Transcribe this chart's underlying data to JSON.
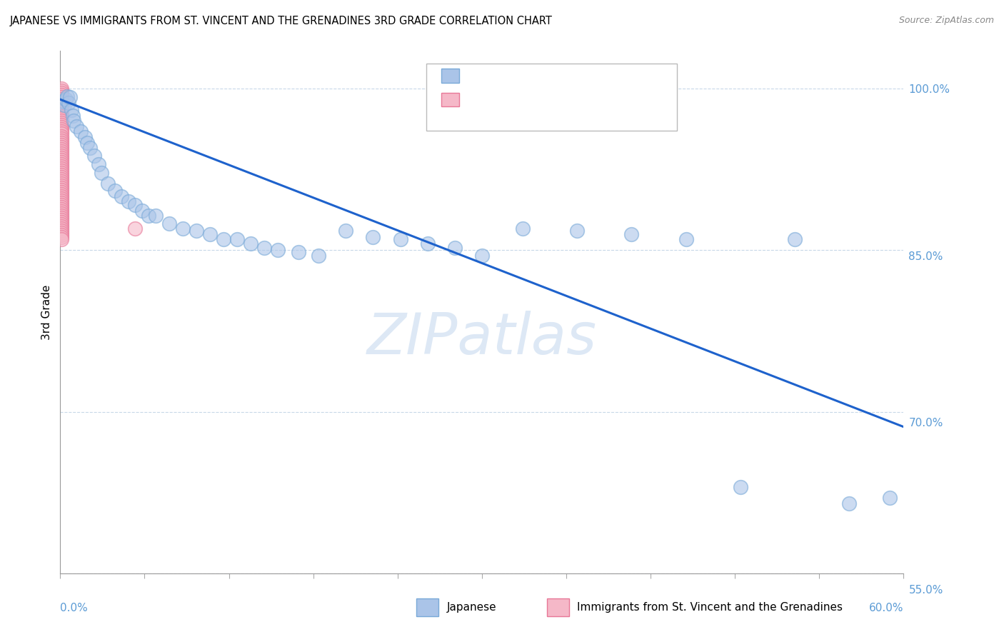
{
  "title": "JAPANESE VS IMMIGRANTS FROM ST. VINCENT AND THE GRENADINES 3RD GRADE CORRELATION CHART",
  "source": "Source: ZipAtlas.com",
  "ylabel": "3rd Grade",
  "ytick_labels": [
    "100.0%",
    "85.0%",
    "70.0%",
    "55.0%"
  ],
  "ytick_values": [
    1.0,
    0.85,
    0.7,
    0.55
  ],
  "xlim": [
    0.0,
    0.62
  ],
  "ylim": [
    0.565,
    1.035
  ],
  "blue_color": "#aac4e8",
  "blue_edge_color": "#7aaad8",
  "pink_color": "#f5b8c8",
  "pink_edge_color": "#e87898",
  "line_color": "#1e62cc",
  "watermark_color": "#dde8f5",
  "blue_scatter_x": [
    0.002,
    0.003,
    0.004,
    0.005,
    0.006,
    0.007,
    0.008,
    0.009,
    0.01,
    0.012,
    0.015,
    0.018,
    0.02,
    0.022,
    0.025,
    0.028,
    0.03,
    0.035,
    0.04,
    0.045,
    0.05,
    0.055,
    0.06,
    0.065,
    0.07,
    0.08,
    0.09,
    0.1,
    0.11,
    0.12,
    0.13,
    0.14,
    0.15,
    0.16,
    0.175,
    0.19,
    0.21,
    0.23,
    0.25,
    0.27,
    0.29,
    0.31,
    0.34,
    0.38,
    0.42,
    0.46,
    0.5,
    0.54,
    0.58,
    0.61
  ],
  "blue_scatter_y": [
    0.988,
    0.985,
    0.99,
    0.993,
    0.987,
    0.992,
    0.98,
    0.975,
    0.97,
    0.965,
    0.96,
    0.955,
    0.95,
    0.945,
    0.938,
    0.93,
    0.922,
    0.912,
    0.905,
    0.9,
    0.895,
    0.892,
    0.887,
    0.882,
    0.882,
    0.875,
    0.87,
    0.868,
    0.865,
    0.86,
    0.86,
    0.856,
    0.852,
    0.85,
    0.848,
    0.845,
    0.868,
    0.862,
    0.86,
    0.856,
    0.852,
    0.845,
    0.87,
    0.868,
    0.865,
    0.86,
    0.63,
    0.86,
    0.615,
    0.62
  ],
  "pink_scatter_x": [
    0.001,
    0.001,
    0.001,
    0.001,
    0.001,
    0.001,
    0.001,
    0.001,
    0.001,
    0.001,
    0.001,
    0.001,
    0.001,
    0.001,
    0.001,
    0.001,
    0.001,
    0.001,
    0.001,
    0.001,
    0.001,
    0.001,
    0.001,
    0.001,
    0.001,
    0.001,
    0.001,
    0.001,
    0.001,
    0.001,
    0.001,
    0.001,
    0.001,
    0.001,
    0.001,
    0.001,
    0.001,
    0.001,
    0.001,
    0.001,
    0.001,
    0.001,
    0.001,
    0.001,
    0.001,
    0.001,
    0.001,
    0.001,
    0.001,
    0.001,
    0.001,
    0.001,
    0.001,
    0.001,
    0.001,
    0.001,
    0.001,
    0.001,
    0.001,
    0.001,
    0.001,
    0.001,
    0.001,
    0.001,
    0.001,
    0.001,
    0.001,
    0.001,
    0.001,
    0.001,
    0.001,
    0.055
  ],
  "pink_scatter_y": [
    1.0,
    0.998,
    0.996,
    0.994,
    0.992,
    0.99,
    0.988,
    0.986,
    0.984,
    0.982,
    0.98,
    0.978,
    0.976,
    0.974,
    0.972,
    0.97,
    0.968,
    0.966,
    0.964,
    0.962,
    0.96,
    0.958,
    0.956,
    0.954,
    0.952,
    0.95,
    0.948,
    0.946,
    0.944,
    0.942,
    0.94,
    0.938,
    0.936,
    0.934,
    0.932,
    0.93,
    0.928,
    0.926,
    0.924,
    0.922,
    0.92,
    0.918,
    0.916,
    0.914,
    0.912,
    0.91,
    0.908,
    0.906,
    0.904,
    0.902,
    0.9,
    0.898,
    0.896,
    0.894,
    0.892,
    0.89,
    0.888,
    0.886,
    0.884,
    0.882,
    0.88,
    0.878,
    0.876,
    0.874,
    0.872,
    0.87,
    0.868,
    0.866,
    0.864,
    0.862,
    0.86,
    0.87
  ],
  "trendline_x": [
    0.0,
    0.62
  ],
  "trendline_y": [
    0.99,
    0.686
  ],
  "grid_color": "#c8d8e8",
  "title_fontsize": 10.5,
  "tick_label_color": "#5b9bd5",
  "bottom_legend_color_blue": "#aac4e8",
  "bottom_legend_color_pink": "#f5b8c8"
}
